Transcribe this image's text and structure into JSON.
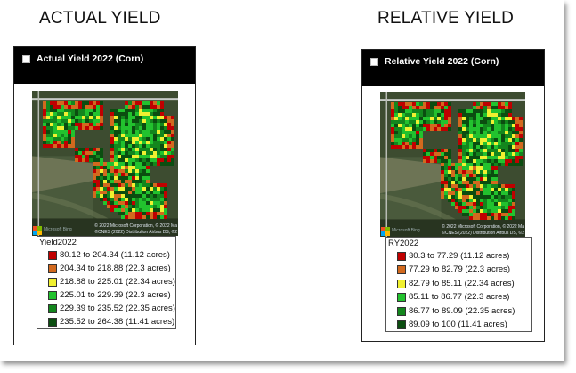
{
  "panels": [
    {
      "section_title": "ACTUAL YIELD",
      "title": "Actual Yield 2022 (Corn)",
      "checkbox_checked": false,
      "map": {
        "attribution_line1": "© 2022 Microsoft Corporation, © 2022 Ma",
        "attribution_line2": "©CNES (2022) Distribution Airbus DS, ©2",
        "logo_text": "Microsoft Bing"
      },
      "legend": {
        "title": "Yield2022",
        "items": [
          {
            "label": "80.12 to 204.34 (11.12 acres)",
            "color": "#c00000"
          },
          {
            "label": "204.34 to 218.88 (22.3 acres)",
            "color": "#d2691e"
          },
          {
            "label": "218.88 to 225.01 (22.34 acres)",
            "color": "#f0f030"
          },
          {
            "label": "225.01 to 229.39 (22.3 acres)",
            "color": "#22c22e"
          },
          {
            "label": "229.39 to 235.52 (22.35 acres)",
            "color": "#13861d"
          },
          {
            "label": "235.52 to 264.38 (11.41 acres)",
            "color": "#0b4d10"
          }
        ]
      }
    },
    {
      "section_title": "RELATIVE YIELD",
      "title": "Relative Yield 2022 (Corn)",
      "checkbox_checked": false,
      "map": {
        "attribution_line1": "© 2022 Microsoft Corporation, © 2022 Ma",
        "attribution_line2": "©CNES (2022) Distribution Airbus DS, ©2",
        "logo_text": "Microsoft Bing"
      },
      "legend": {
        "title": "RY2022",
        "items": [
          {
            "label": "30.3 to 77.29 (11.12 acres)",
            "color": "#c00000"
          },
          {
            "label": "77.29 to 82.79 (22.3 acres)",
            "color": "#d2691e"
          },
          {
            "label": "82.79 to 85.11 (22.34 acres)",
            "color": "#f0f030"
          },
          {
            "label": "85.11 to 86.77 (22.3 acres)",
            "color": "#22c22e"
          },
          {
            "label": "86.77 to 89.09 (22.35 acres)",
            "color": "#13861d"
          },
          {
            "label": "89.09 to 100 (11.41 acres)",
            "color": "#0b4d10"
          }
        ]
      }
    }
  ],
  "icons": {
    "checkbox": "empty-square",
    "map_logo": "microsoft-logo"
  }
}
